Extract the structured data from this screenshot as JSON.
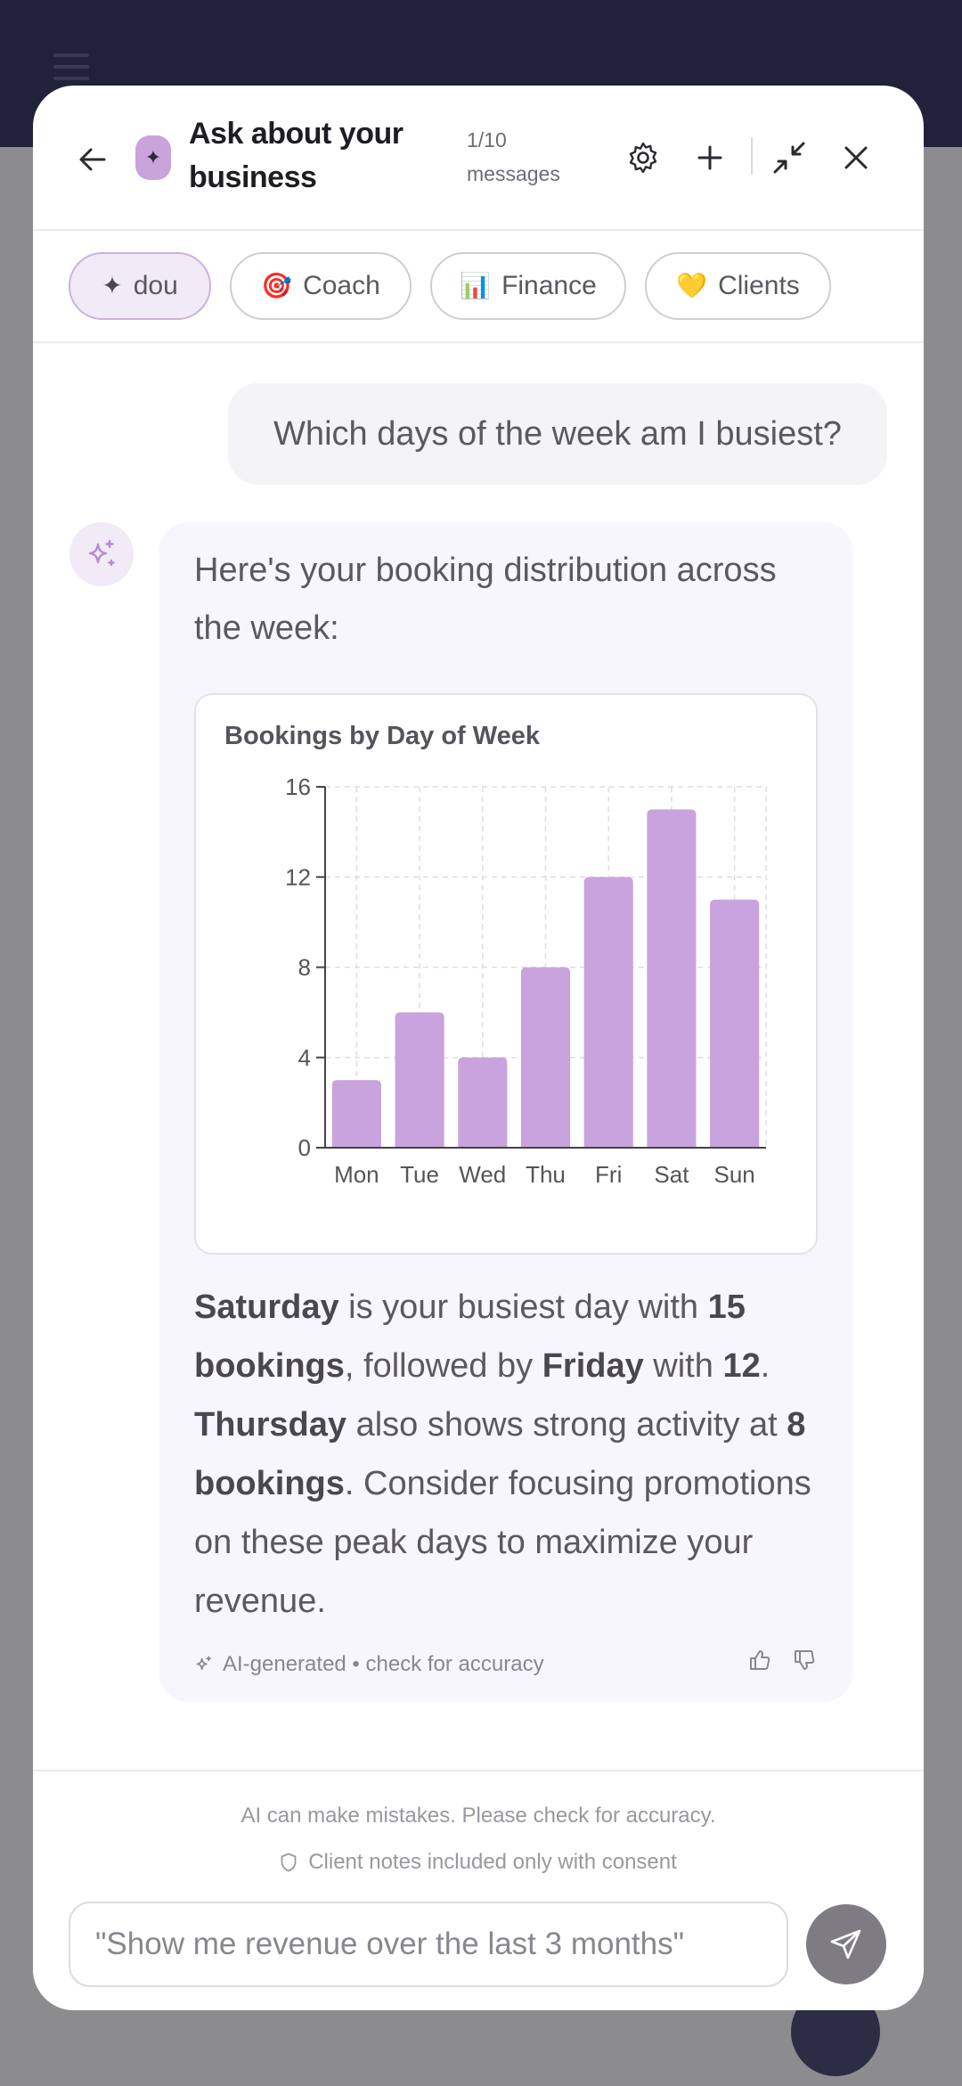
{
  "header": {
    "title": "Ask about your business",
    "message_count": "1/10 messages"
  },
  "chips": [
    {
      "icon": "✦",
      "label": "dou",
      "active": true
    },
    {
      "icon": "🎯",
      "label": "Coach",
      "active": false
    },
    {
      "icon": "📊",
      "label": "Finance",
      "active": false
    },
    {
      "icon": "💛",
      "label": "Clients",
      "active": false
    }
  ],
  "conversation": {
    "user_message": "Which days of the week am I busiest?",
    "ai_intro": "Here's your booking distribution across the week:",
    "summary": {
      "p1": "Saturday",
      "p2": " is your busiest day with ",
      "p3": "15 bookings",
      "p4": ", followed by ",
      "p5": "Friday",
      "p6": " with ",
      "p7": "12",
      "p8": ". ",
      "p9": "Thursday",
      "p10": " also shows strong activity at ",
      "p11": "8 bookings",
      "p12": ". Consider focusing promotions on these peak days to maximize your revenue."
    },
    "ai_footer": "AI-generated • check for accuracy"
  },
  "chart_data": {
    "type": "bar",
    "title": "Bookings by Day of Week",
    "categories": [
      "Mon",
      "Tue",
      "Wed",
      "Thu",
      "Fri",
      "Sat",
      "Sun"
    ],
    "values": [
      3,
      6,
      4,
      8,
      12,
      15,
      11
    ],
    "ylim": [
      0,
      16
    ],
    "yticks": [
      0,
      4,
      8,
      12,
      16
    ],
    "grid": true,
    "bar_color": "#c9a3dd"
  },
  "footer": {
    "disclaimer": "AI can make mistakes. Please check for accuracy.",
    "consent": "Client notes included only with consent",
    "input_placeholder": "\"Show me revenue over the last 3 months\""
  },
  "colors": {
    "accent": "#c8a3dc",
    "backdrop_header": "#22213a"
  }
}
